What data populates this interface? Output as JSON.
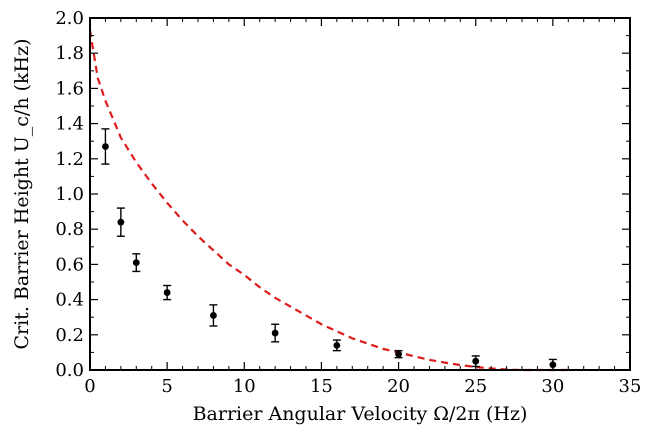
{
  "chart_data": {
    "type": "scatter",
    "xlabel": "Barrier Angular Velocity Ω/2π (Hz)",
    "ylabel": "Crit. Barrier Height  U_c/h (kHz)",
    "xlim": [
      0,
      35
    ],
    "ylim": [
      0,
      2.0
    ],
    "xticks": [
      "0",
      "5",
      "10",
      "15",
      "20",
      "25",
      "30",
      "35"
    ],
    "yticks": [
      "0.0",
      "0.2",
      "0.4",
      "0.6",
      "0.8",
      "1.0",
      "1.2",
      "1.4",
      "1.6",
      "1.8",
      "2.0"
    ],
    "grid": false,
    "series": [
      {
        "kind": "points-with-error-bars",
        "color": "#000000",
        "points": [
          {
            "x": 1,
            "y": 1.27,
            "err": 0.1
          },
          {
            "x": 2,
            "y": 0.84,
            "err": 0.08
          },
          {
            "x": 3,
            "y": 0.61,
            "err": 0.05
          },
          {
            "x": 5,
            "y": 0.44,
            "err": 0.04
          },
          {
            "x": 8,
            "y": 0.31,
            "err": 0.06
          },
          {
            "x": 12,
            "y": 0.21,
            "err": 0.05
          },
          {
            "x": 16,
            "y": 0.14,
            "err": 0.03
          },
          {
            "x": 20,
            "y": 0.09,
            "err": 0.02
          },
          {
            "x": 25,
            "y": 0.05,
            "err": 0.03
          },
          {
            "x": 30,
            "y": 0.03,
            "err": 0.03
          }
        ]
      },
      {
        "kind": "dashed-curve",
        "color": "#dd1c1c",
        "points": [
          {
            "x": 0,
            "y": 1.93
          },
          {
            "x": 0.5,
            "y": 1.66
          },
          {
            "x": 1,
            "y": 1.53
          },
          {
            "x": 2,
            "y": 1.32
          },
          {
            "x": 3,
            "y": 1.18
          },
          {
            "x": 4,
            "y": 1.06
          },
          {
            "x": 5,
            "y": 0.95
          },
          {
            "x": 6,
            "y": 0.85
          },
          {
            "x": 7,
            "y": 0.76
          },
          {
            "x": 8,
            "y": 0.68
          },
          {
            "x": 9,
            "y": 0.6
          },
          {
            "x": 10,
            "y": 0.54
          },
          {
            "x": 11,
            "y": 0.47
          },
          {
            "x": 12,
            "y": 0.41
          },
          {
            "x": 13,
            "y": 0.36
          },
          {
            "x": 14,
            "y": 0.31
          },
          {
            "x": 15,
            "y": 0.26
          },
          {
            "x": 16,
            "y": 0.22
          },
          {
            "x": 17,
            "y": 0.18
          },
          {
            "x": 18,
            "y": 0.15
          },
          {
            "x": 19,
            "y": 0.12
          },
          {
            "x": 20,
            "y": 0.1
          },
          {
            "x": 21,
            "y": 0.078
          },
          {
            "x": 22,
            "y": 0.058
          },
          {
            "x": 23,
            "y": 0.042
          },
          {
            "x": 24,
            "y": 0.028
          },
          {
            "x": 25,
            "y": 0.017
          },
          {
            "x": 26,
            "y": 0.009
          },
          {
            "x": 27,
            "y": 0.003
          },
          {
            "x": 28,
            "y": 0.0
          },
          {
            "x": 29,
            "y": 0.0
          },
          {
            "x": 30,
            "y": 0.0
          },
          {
            "x": 31,
            "y": 0.0
          }
        ]
      }
    ]
  }
}
